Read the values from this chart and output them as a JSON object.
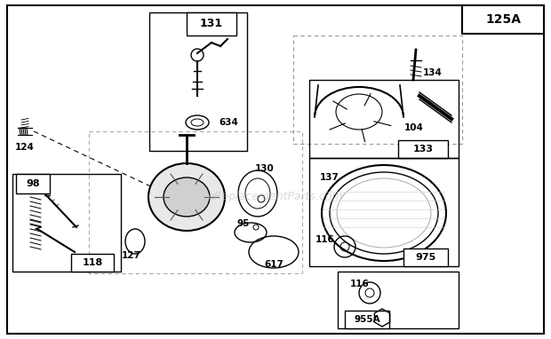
{
  "bg_color": "#ffffff",
  "title": "125A",
  "fig_w": 6.2,
  "fig_h": 3.82,
  "dpi": 100
}
